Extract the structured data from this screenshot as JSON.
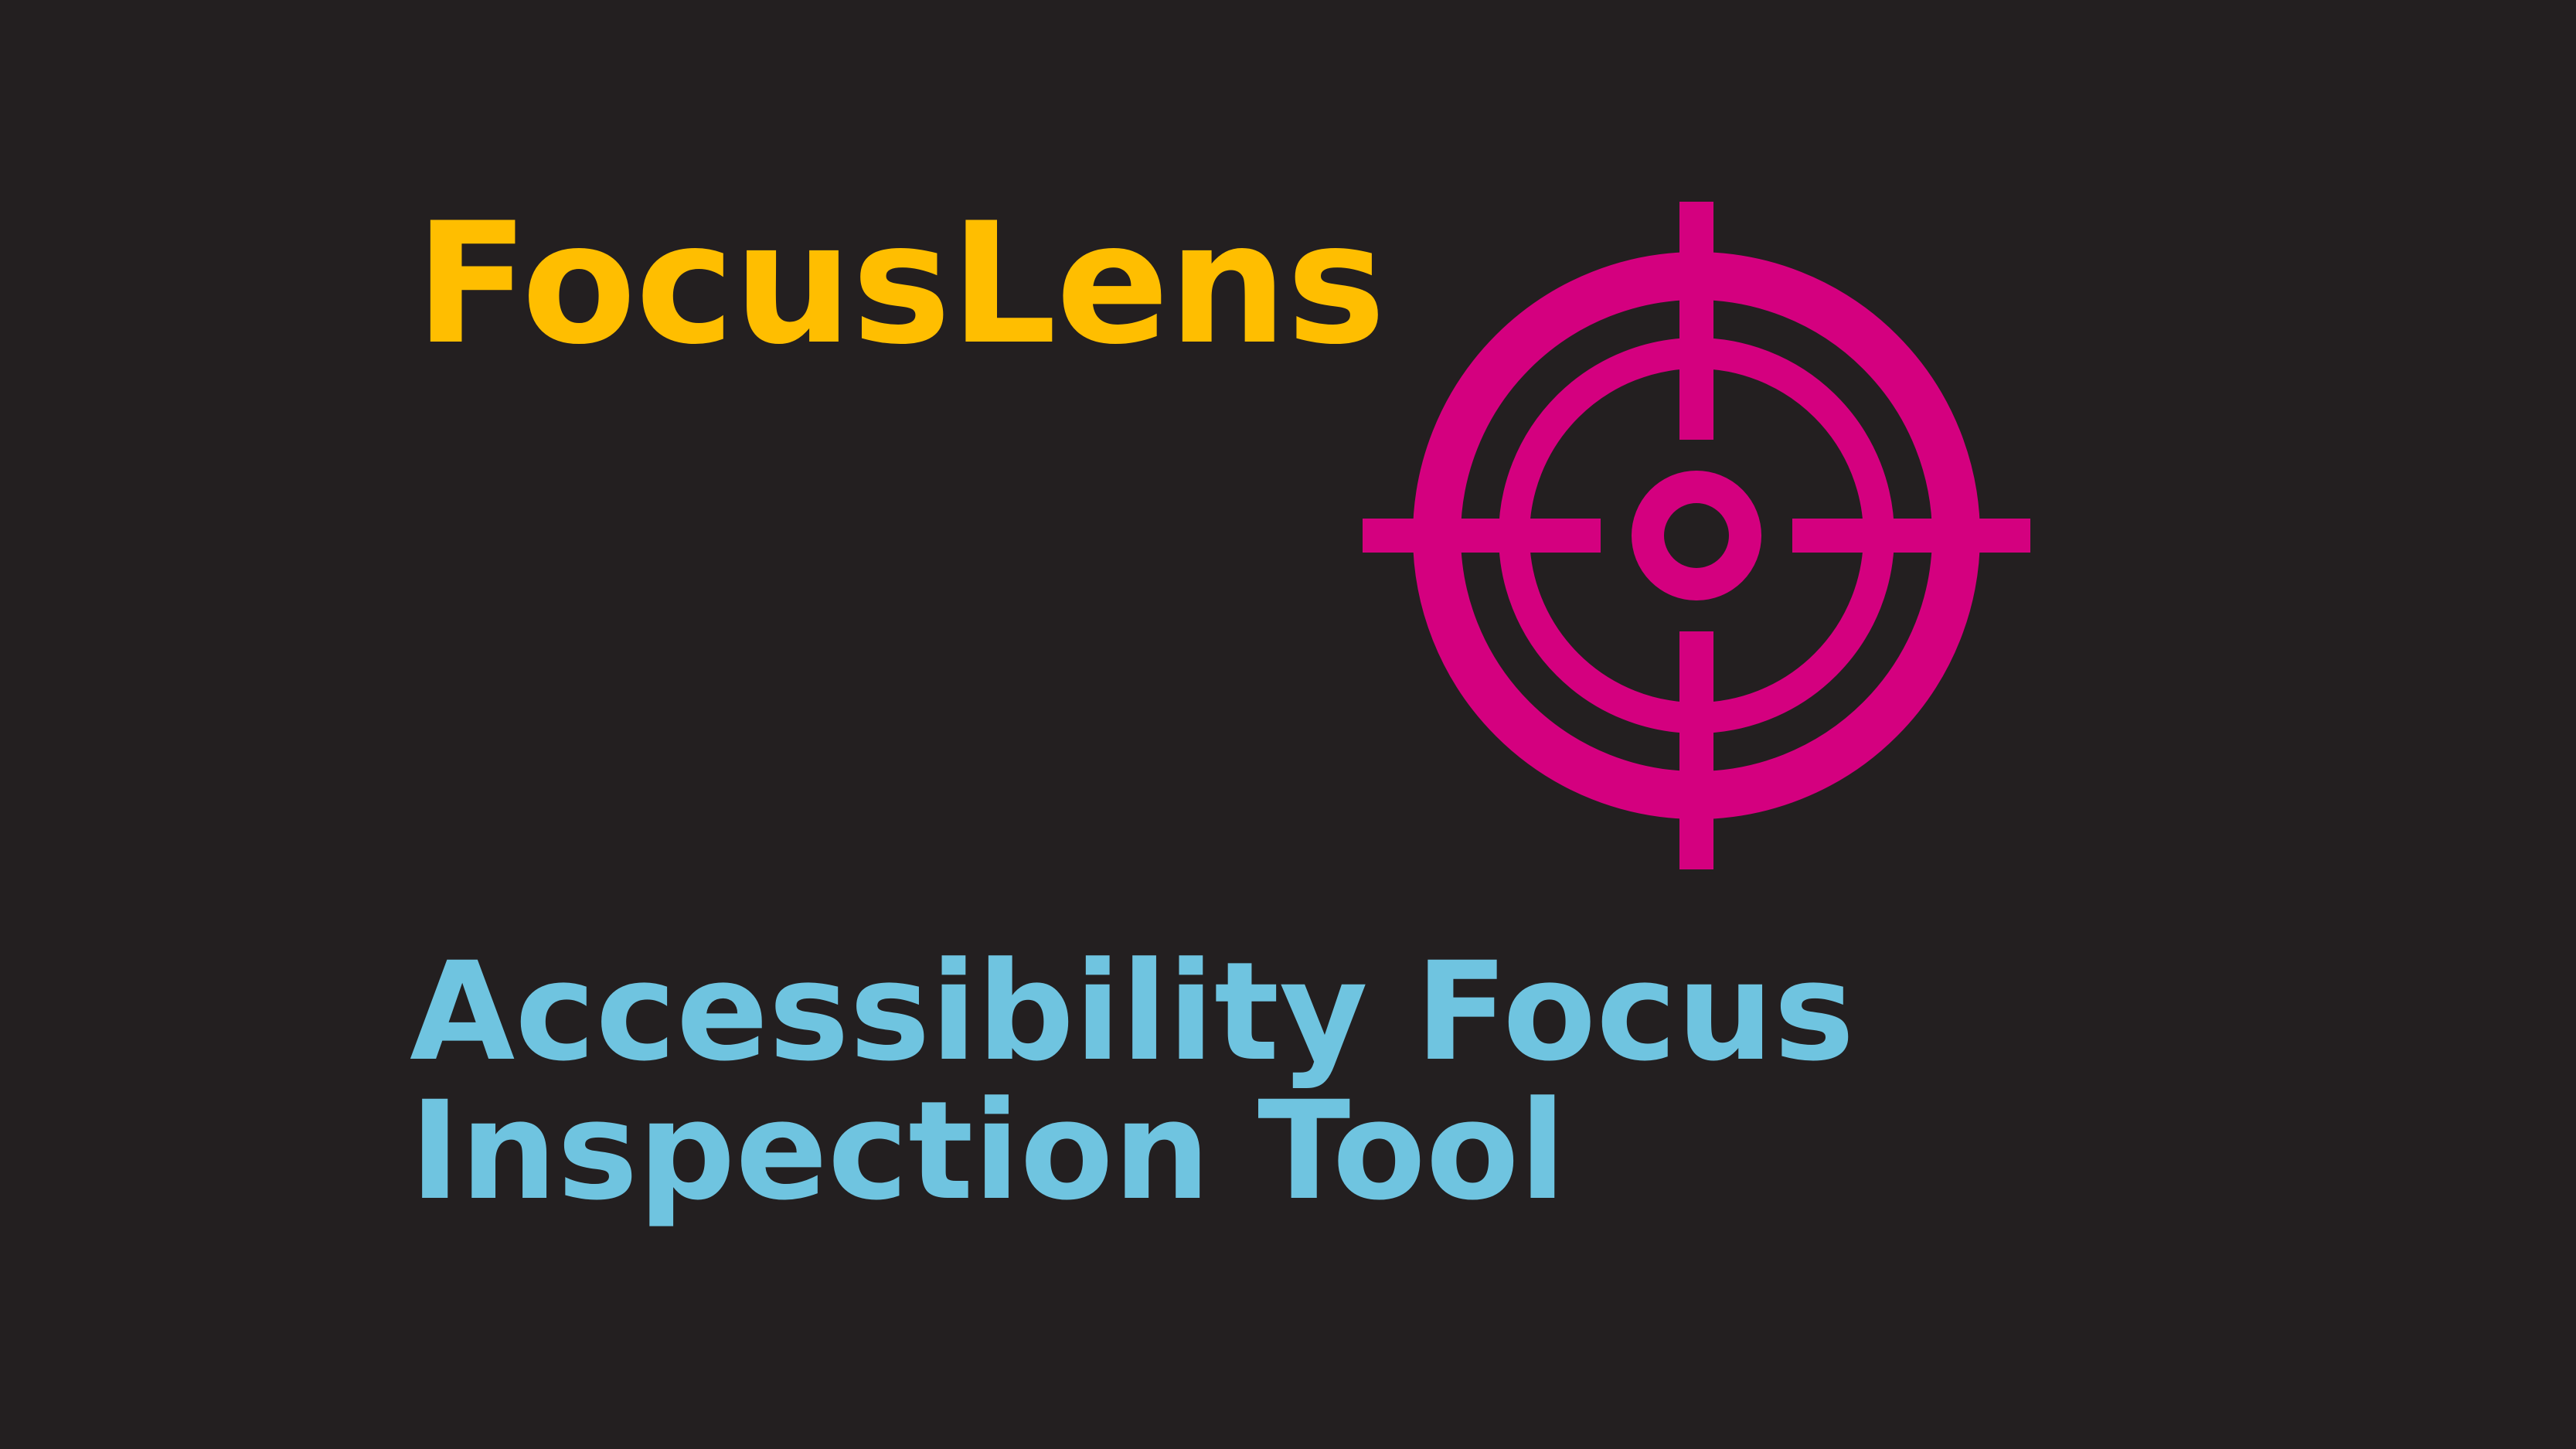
{
  "title": "FocusLens",
  "subtitle": {
    "line1": "Accessibility Focus",
    "line2": "Inspection Tool"
  },
  "logo": {
    "icon": "crosshair-target-icon",
    "color": "#d4007f"
  },
  "colors": {
    "background": "#231f20",
    "title": "#ffbe00",
    "subtitle": "#6fc4e0"
  }
}
